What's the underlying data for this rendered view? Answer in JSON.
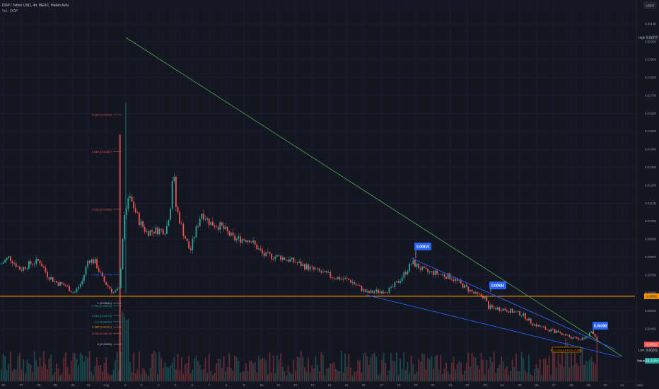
{
  "legend": {
    "title": "DOP / Tether USD, 4h, MEXC, Heikin Ashi",
    "volume": "Vol · DOP"
  },
  "currency_button": "USDT",
  "colors": {
    "background": "#141722",
    "grid": "#1c2030",
    "up": "#26a69a",
    "down": "#ef5350",
    "trendline": "#4caf50",
    "channel": "#2962ff",
    "support": "#ff9800",
    "axis_text": "#8b909c"
  },
  "badges": {
    "high_label": "High",
    "high_value": "0.02077",
    "low_label": "Low",
    "low_value": "0.00251",
    "current_price": "0.00522",
    "volume_label": "Volume",
    "volume_value": "25.222M",
    "support_price": "0.00582"
  },
  "callouts": [
    {
      "name": "callout-0-00815",
      "text": "0.00815"
    },
    {
      "name": "callout-0-00584",
      "text": "0.00584"
    },
    {
      "name": "callout-0-00398",
      "text": "0.00398"
    }
  ],
  "accumulation_zone": {
    "label": "ACCUMULATION ZONE"
  },
  "fib_labels": [
    {
      "text": "4.236 (0.01593)",
      "price": 0.01593,
      "color": "#ef5350"
    },
    {
      "text": "3.618 (0.01387)",
      "price": 0.01387,
      "color": "#ef5350"
    },
    {
      "text": "2.618 (0.01066)",
      "price": 0.01066,
      "color": "#ef5350"
    },
    {
      "text": "1.618 (0.00703)",
      "price": 0.00703,
      "color": "#2962ff"
    },
    {
      "text": "1 (0.00544)",
      "price": 0.00544,
      "color": "#c9ccd6"
    },
    {
      "text": "0.786 (0.00528)",
      "price": 0.00528,
      "color": "#26a69a"
    },
    {
      "text": "0.618 (0.00473)",
      "price": 0.00473,
      "color": "#26a69a"
    },
    {
      "text": "0.5 (0.00440)",
      "price": 0.0044,
      "color": "#26a69a"
    },
    {
      "text": "0.382 (0.00411)",
      "price": 0.00411,
      "color": "#ff9800"
    },
    {
      "text": "0.236 (0.00374)",
      "price": 0.00374,
      "color": "#ef5350"
    },
    {
      "text": "0 (0.00316)",
      "price": 0.00316,
      "color": "#c9ccd6"
    }
  ],
  "chart_data": {
    "type": "candlestick",
    "title": "DOP / Tether USD, 4h, MEXC, Heikin Ashi",
    "currency": "USDT",
    "ylim": [
      0.003,
      0.0225
    ],
    "y_ticks": [
      "0.02200",
      "0.02100",
      "0.02000",
      "0.01900",
      "0.01800",
      "0.01700",
      "0.01600",
      "0.01500",
      "0.01400",
      "0.01300",
      "0.01200",
      "0.01100",
      "0.01000",
      "0.00900",
      "0.00800",
      "0.00700",
      "0.00600",
      "0.00500",
      "0.00400"
    ],
    "x_ticks": [
      "26",
      "27",
      "28",
      "29",
      "30",
      "31",
      "Aug",
      "2",
      "3",
      "4",
      "5",
      "6",
      "7",
      "8",
      "9",
      "10",
      "11",
      "12",
      "13",
      "14",
      "15",
      "16",
      "17",
      "18",
      "19",
      "20",
      "21",
      "22",
      "23",
      "24",
      "25",
      "26",
      "27",
      "28",
      "29",
      "30",
      "31",
      "Sep"
    ],
    "price_path": [
      [
        "Jul 26",
        0.0078
      ],
      [
        "Jul 27",
        0.0074
      ],
      [
        "Jul 28",
        0.0076
      ],
      [
        "Jul 29",
        0.0068
      ],
      [
        "Jul 30",
        0.006
      ],
      [
        "Jul 31",
        0.0082
      ],
      [
        "Aug 1",
        0.0065
      ],
      [
        "Aug 2 (launch wick high)",
        0.0166
      ],
      [
        "Aug 2",
        0.0112
      ],
      [
        "Aug 3",
        0.0108
      ],
      [
        "Aug 4",
        0.0094
      ],
      [
        "Aug 5 (spike)",
        0.0146
      ],
      [
        "Aug 5",
        0.0092
      ],
      [
        "Aug 6",
        0.0098
      ],
      [
        "Aug 7",
        0.0112
      ],
      [
        "Aug 8",
        0.0095
      ],
      [
        "Aug 9",
        0.0089
      ],
      [
        "Aug 10",
        0.0083
      ],
      [
        "Aug 11",
        0.0081
      ],
      [
        "Aug 12",
        0.0075
      ],
      [
        "Aug 13",
        0.0073
      ],
      [
        "Aug 14",
        0.0071
      ],
      [
        "Aug 15",
        0.0067
      ],
      [
        "Aug 16",
        0.006
      ],
      [
        "Aug 17",
        0.0062
      ],
      [
        "Aug 18",
        0.0075
      ],
      [
        "Aug 19",
        0.0074
      ],
      [
        "Aug 20",
        0.0072
      ],
      [
        "Aug 21",
        0.0068
      ],
      [
        "Aug 22",
        0.006
      ],
      [
        "Aug 23",
        0.0052
      ],
      [
        "Aug 24",
        0.005
      ],
      [
        "Aug 25",
        0.0045
      ],
      [
        "Aug 26",
        0.0042
      ],
      [
        "Aug 27",
        0.0039
      ],
      [
        "Aug 28",
        0.0035
      ],
      [
        "Aug 29",
        0.0036
      ]
    ],
    "high": 0.02077,
    "low": 0.00251,
    "last_price": 0.00522,
    "support_level": 0.00582,
    "volume_last": "25.222M",
    "annotations": [
      "0.00815",
      "0.00584",
      "0.00398",
      "ACCUMULATION ZONE"
    ]
  }
}
